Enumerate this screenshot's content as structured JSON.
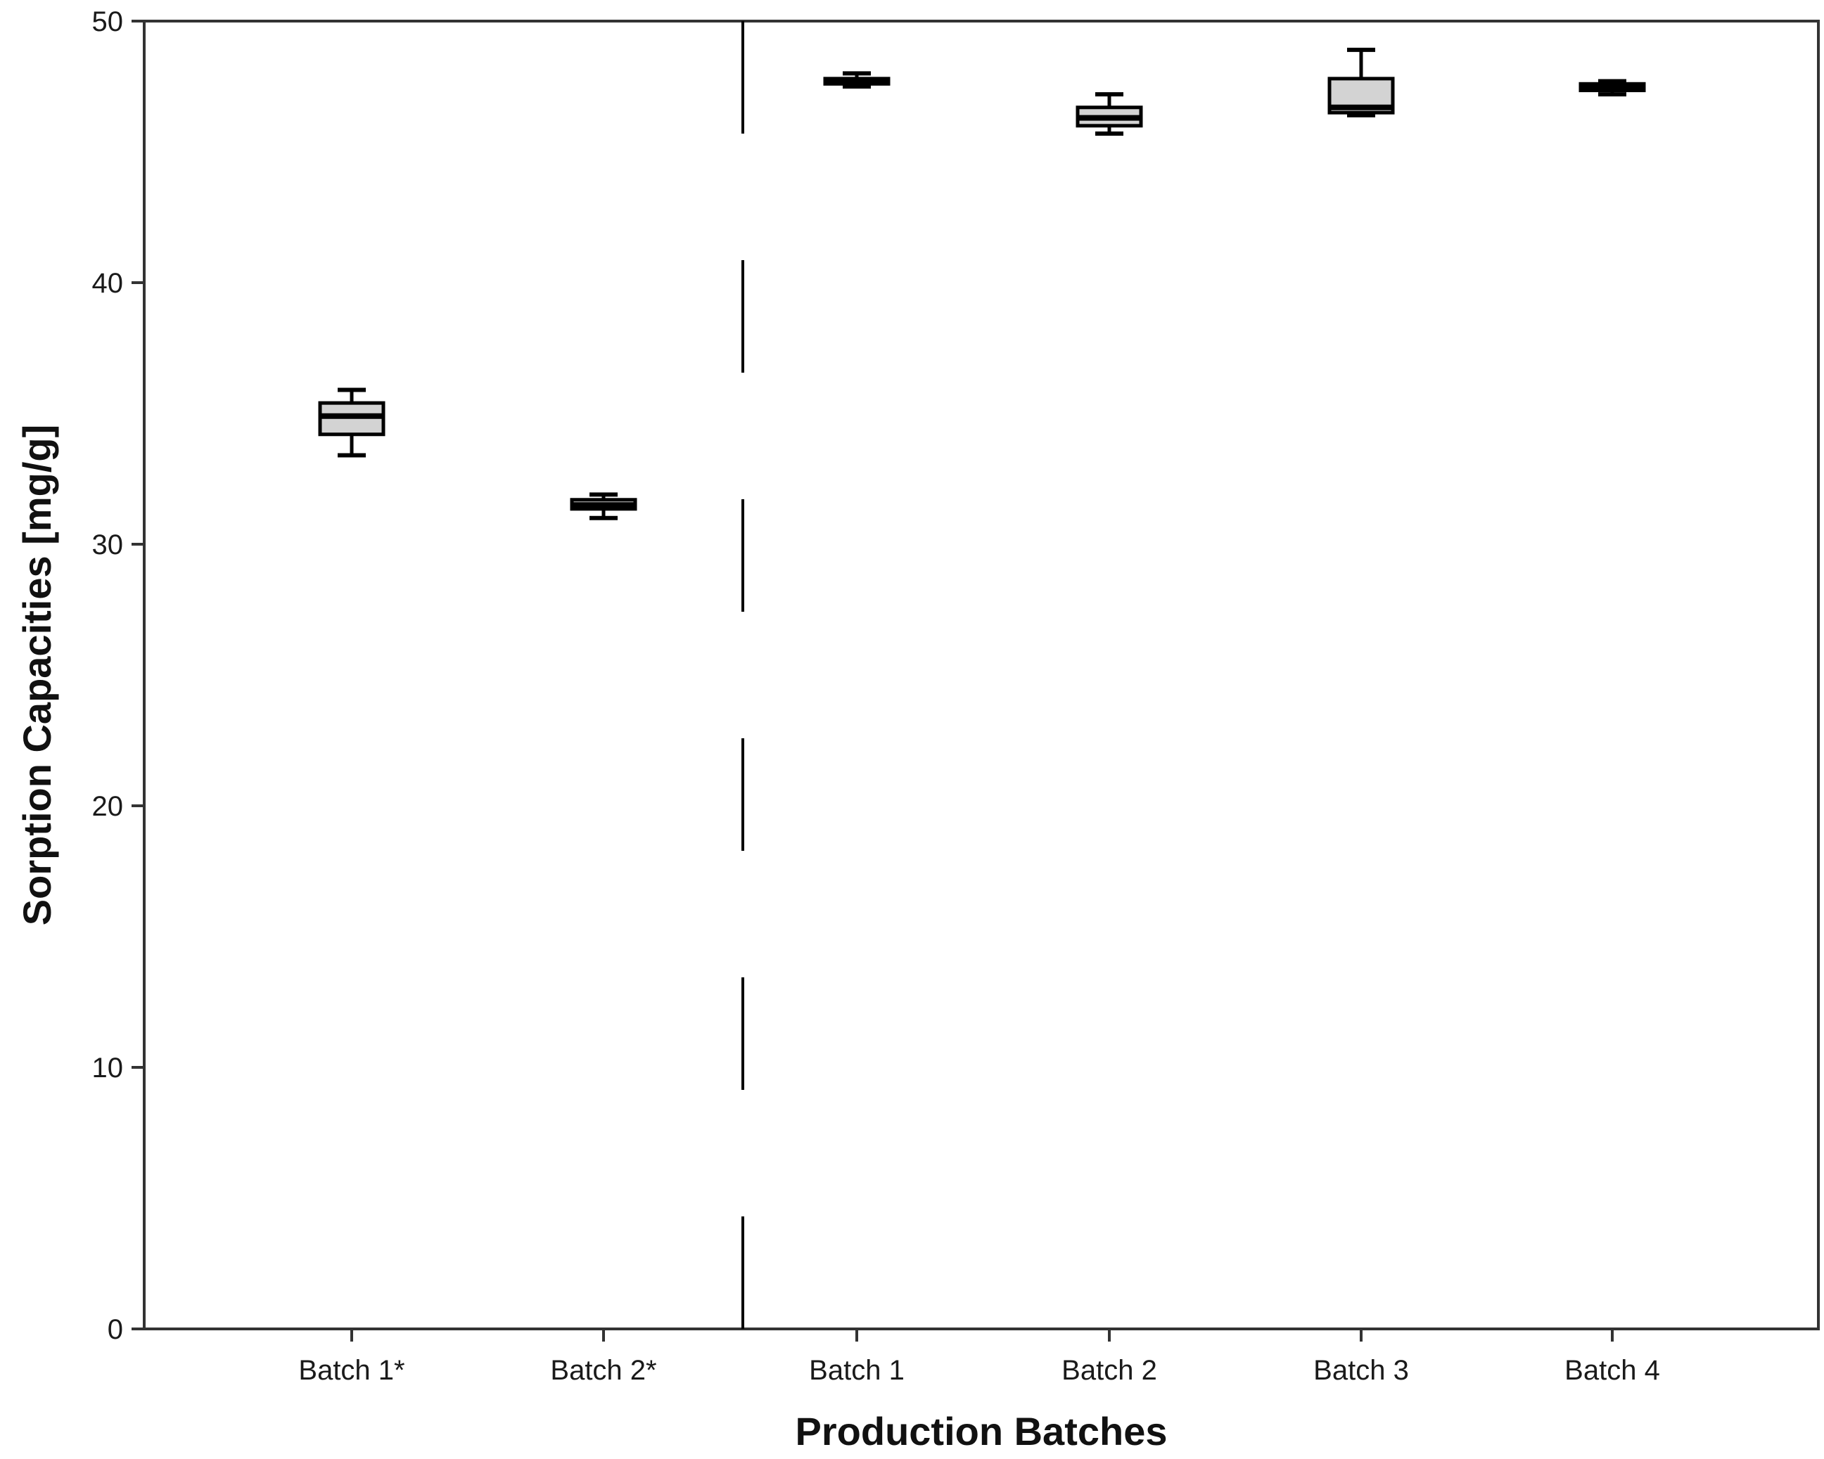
{
  "chart_data": {
    "type": "box",
    "title": "",
    "xlabel": "Production Batches",
    "ylabel": "Sorption Capacities [mg/g]",
    "ylim": [
      0,
      50
    ],
    "yticks": [
      0,
      10,
      20,
      30,
      40,
      50
    ],
    "grid": false,
    "divider_after_category_index": 1,
    "divider_style": "dashed",
    "categories": [
      "Batch 1*",
      "Batch 2*",
      "Batch 1",
      "Batch 2",
      "Batch 3",
      "Batch 4"
    ],
    "boxes": [
      {
        "min": 33.4,
        "q1": 34.2,
        "median": 34.9,
        "q3": 35.4,
        "max": 35.9
      },
      {
        "min": 31.0,
        "q1": 31.35,
        "median": 31.5,
        "q3": 31.7,
        "max": 31.9
      },
      {
        "min": 47.5,
        "q1": 47.6,
        "median": 47.7,
        "q3": 47.8,
        "max": 48.0
      },
      {
        "min": 45.7,
        "q1": 46.0,
        "median": 46.3,
        "q3": 46.7,
        "max": 47.2
      },
      {
        "min": 46.4,
        "q1": 46.5,
        "median": 46.7,
        "q3": 47.8,
        "max": 48.9
      },
      {
        "min": 47.2,
        "q1": 47.35,
        "median": 47.5,
        "q3": 47.6,
        "max": 47.7
      }
    ],
    "colors": {
      "box_fill": "#d3d3d3",
      "line": "#000000",
      "axis": "#333333"
    }
  }
}
